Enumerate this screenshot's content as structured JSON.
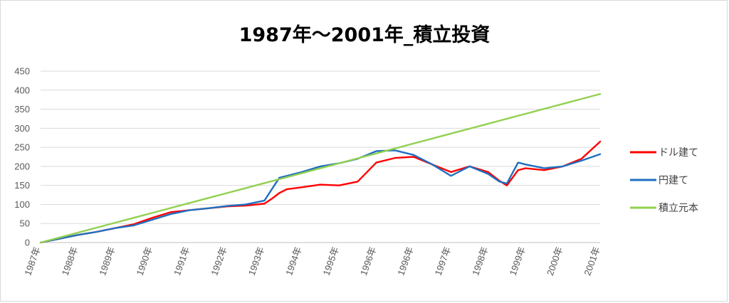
{
  "chart_data": {
    "type": "line",
    "title": "1987年～2001年_積立投資",
    "xlabel": "",
    "ylabel": "",
    "ylim": [
      0,
      450
    ],
    "yticks": [
      0,
      50,
      100,
      150,
      200,
      250,
      300,
      350,
      400,
      450
    ],
    "xtick_labels": [
      "1987年",
      "1988年",
      "1989年",
      "1990年",
      "1991年",
      "1992年",
      "1993年",
      "1994年",
      "1995年",
      "1996年",
      "1996年",
      "1997年",
      "1998年",
      "1999年",
      "2000年",
      "2001年"
    ],
    "grid": true,
    "legend_position": "right",
    "x": [
      0,
      0.5,
      1,
      1.5,
      2,
      2.5,
      3,
      3.5,
      4,
      4.5,
      5,
      5.5,
      6,
      6.2,
      6.4,
      6.6,
      7,
      7.5,
      8,
      8.5,
      9,
      9.5,
      10,
      10.5,
      11,
      11.5,
      12,
      12.3,
      12.5,
      12.8,
      13,
      13.5,
      14,
      14.5,
      15
    ],
    "series": [
      {
        "name": "ドル建て",
        "color": "#ff0000",
        "values": [
          0,
          10,
          20,
          28,
          38,
          48,
          65,
          80,
          85,
          90,
          95,
          97,
          102,
          115,
          130,
          140,
          145,
          152,
          150,
          160,
          210,
          222,
          225,
          205,
          185,
          200,
          185,
          162,
          150,
          190,
          195,
          190,
          200,
          220,
          265
        ]
      },
      {
        "name": "円建て",
        "color": "#1f6fc0",
        "values": [
          0,
          10,
          20,
          28,
          38,
          45,
          60,
          75,
          85,
          90,
          96,
          100,
          110,
          140,
          170,
          175,
          185,
          200,
          208,
          220,
          240,
          242,
          230,
          205,
          175,
          200,
          180,
          160,
          155,
          210,
          205,
          195,
          200,
          215,
          232
        ]
      },
      {
        "name": "積立元本",
        "color": "#92d050",
        "values": [
          0,
          13,
          26,
          39,
          52,
          65,
          78,
          91,
          104,
          117,
          130,
          143,
          156,
          161.2,
          166.4,
          171.6,
          182,
          195,
          208,
          221,
          234,
          247,
          260,
          273,
          286,
          299,
          312,
          319.8,
          325,
          332.8,
          338,
          351,
          364,
          377,
          390
        ]
      }
    ]
  }
}
